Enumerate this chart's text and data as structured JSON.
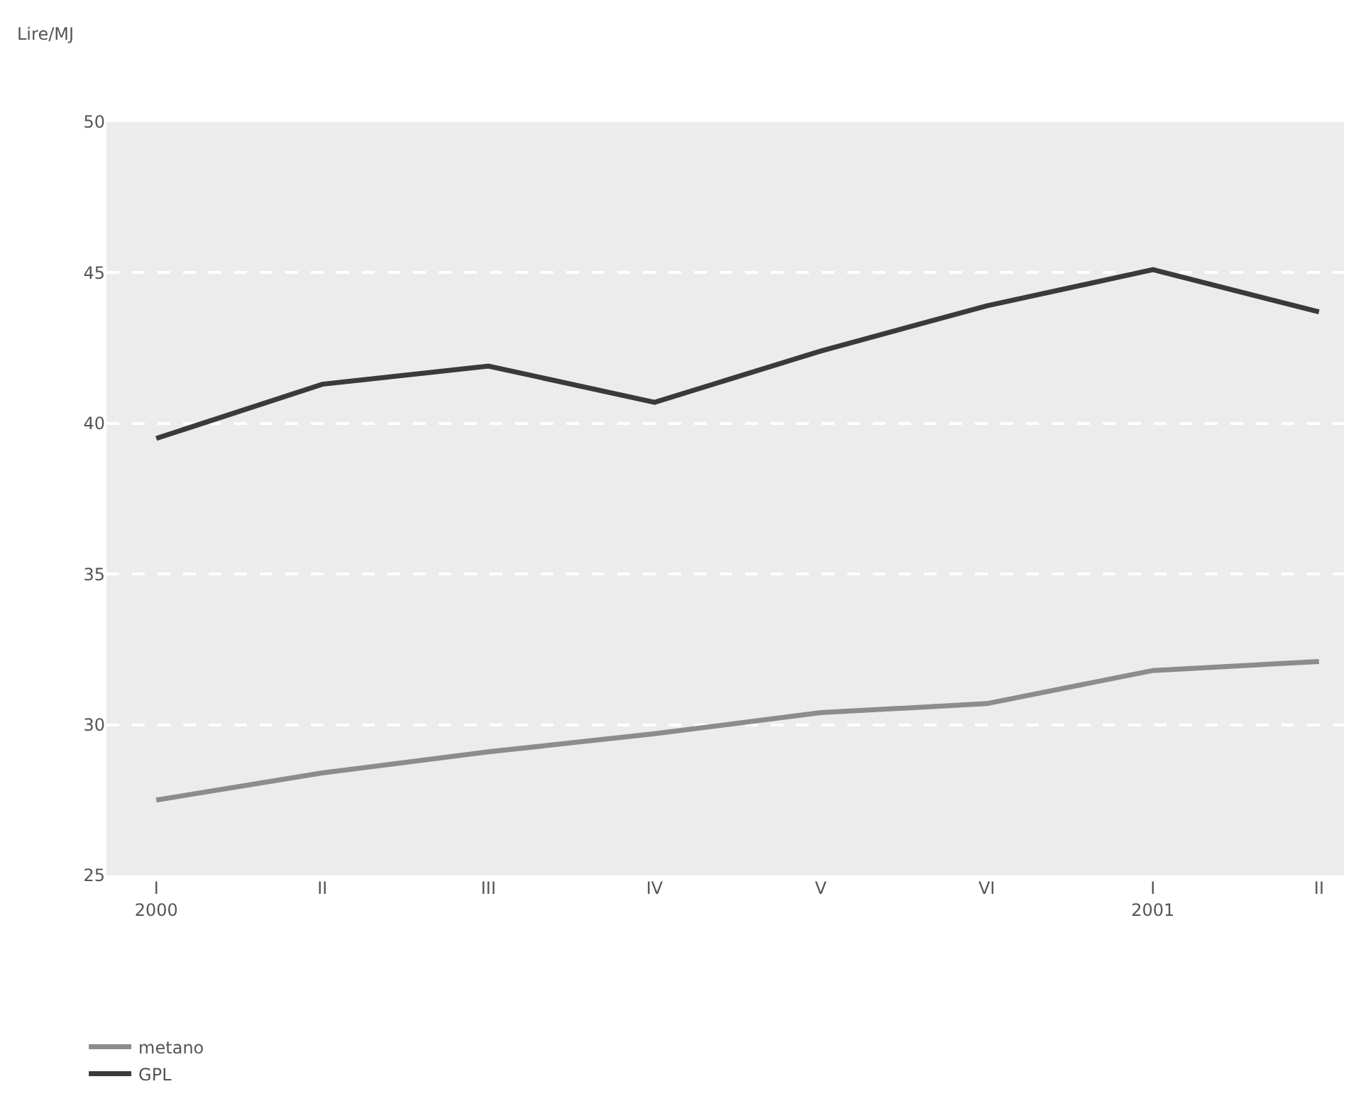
{
  "chart_data": {
    "type": "line",
    "ylabel": "Lire/MJ",
    "categories": [
      "I\n2000",
      "II",
      "III",
      "IV",
      "V",
      "VI",
      "I\n2001",
      "II"
    ],
    "series": [
      {
        "name": "metano",
        "color": "#8c8c8c",
        "values": [
          27.5,
          28.4,
          29.1,
          29.7,
          30.4,
          30.7,
          31.8,
          32.1
        ]
      },
      {
        "name": "GPL",
        "color": "#3a3a3a",
        "values": [
          39.5,
          41.3,
          41.9,
          40.7,
          42.4,
          43.9,
          45.1,
          43.7
        ]
      }
    ],
    "ylim": [
      25,
      50
    ],
    "yticks": [
      25,
      30,
      35,
      40,
      45,
      50
    ],
    "grid": "y",
    "legend": "bottom left",
    "marker": "none",
    "line_style": "solid"
  }
}
